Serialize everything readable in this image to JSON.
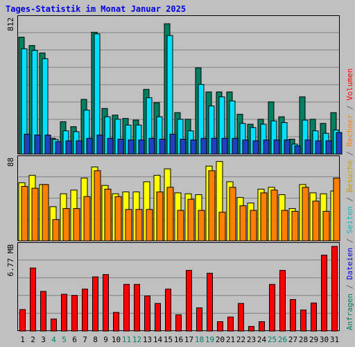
{
  "title": "Tages-Statistik im Monat Januar 2025",
  "chart_data": [
    {
      "type": "bar",
      "name": "requests",
      "ymax_label": "812",
      "ylim": [
        0,
        812
      ],
      "categories": [
        "1",
        "2",
        "3",
        "4",
        "5",
        "6",
        "7",
        "8",
        "9",
        "10",
        "11",
        "12",
        "13",
        "14",
        "15",
        "16",
        "17",
        "18",
        "19",
        "20",
        "21",
        "22",
        "23",
        "24",
        "25",
        "26",
        "27",
        "28",
        "29",
        "30",
        "31"
      ],
      "series": [
        {
          "name": "Anfragen",
          "color": "#008060",
          "values": [
            705,
            655,
            610,
            95,
            195,
            165,
            330,
            735,
            275,
            235,
            215,
            205,
            390,
            310,
            786,
            250,
            210,
            520,
            375,
            375,
            375,
            240,
            180,
            210,
            315,
            225,
            90,
            345,
            210,
            185,
            250
          ]
        },
        {
          "name": "Dateien",
          "color": "#00e0ff",
          "values": [
            635,
            625,
            575,
            88,
            140,
            135,
            265,
            725,
            225,
            210,
            175,
            175,
            340,
            225,
            715,
            210,
            140,
            420,
            290,
            345,
            320,
            185,
            160,
            180,
            200,
            190,
            60,
            205,
            140,
            125,
            145
          ]
        },
        {
          "name": "Seiten",
          "color": "#2040c0",
          "values": [
            120,
            115,
            115,
            75,
            80,
            80,
            95,
            115,
            95,
            90,
            85,
            85,
            95,
            90,
            120,
            90,
            85,
            95,
            95,
            95,
            95,
            85,
            80,
            85,
            85,
            85,
            50,
            85,
            80,
            80,
            130
          ]
        }
      ],
      "legend_labels": [
        "Anfragen",
        "/",
        "Dateien",
        "/",
        "Seiten",
        "/",
        "Besuche",
        "/",
        "Rechner",
        "/",
        "Volumen"
      ]
    },
    {
      "type": "bar",
      "name": "visits",
      "ymax_label": "88",
      "ylim": [
        0,
        88
      ],
      "categories": [
        "1",
        "2",
        "3",
        "4",
        "5",
        "6",
        "7",
        "8",
        "9",
        "10",
        "11",
        "12",
        "13",
        "14",
        "15",
        "16",
        "17",
        "18",
        "19",
        "20",
        "21",
        "22",
        "23",
        "24",
        "25",
        "26",
        "27",
        "28",
        "29",
        "30",
        "31"
      ],
      "series": [
        {
          "name": "Besuche",
          "color": "#ffff00",
          "values": [
            63,
            71,
            61,
            37,
            51,
            55,
            68,
            80,
            60,
            51,
            53,
            53,
            64,
            71,
            78,
            52,
            51,
            50,
            81,
            86,
            64,
            47,
            41,
            56,
            58,
            50,
            35,
            61,
            52,
            51,
            54
          ]
        },
        {
          "name": "Rechner",
          "color": "#ff8000",
          "values": [
            59,
            57,
            61,
            23,
            35,
            35,
            48,
            76,
            56,
            48,
            34,
            34,
            34,
            53,
            58,
            33,
            45,
            33,
            76,
            31,
            58,
            38,
            33,
            52,
            55,
            33,
            32,
            58,
            43,
            32,
            68
          ]
        }
      ]
    },
    {
      "type": "bar",
      "name": "volume",
      "ymax_label": "6.77 MB",
      "ylim": [
        0,
        6.77
      ],
      "categories": [
        "1",
        "2",
        "3",
        "4",
        "5",
        "6",
        "7",
        "8",
        "9",
        "10",
        "11",
        "12",
        "13",
        "14",
        "15",
        "16",
        "17",
        "18",
        "19",
        "20",
        "21",
        "22",
        "23",
        "24",
        "25",
        "26",
        "27",
        "28",
        "29",
        "30",
        "31"
      ],
      "series": [
        {
          "name": "Volumen",
          "color": "#ff0000",
          "values": [
            1.72,
            5.04,
            3.17,
            0.96,
            2.94,
            2.85,
            3.36,
            4.33,
            4.52,
            1.49,
            3.73,
            3.73,
            2.8,
            2.21,
            3.36,
            1.3,
            4.85,
            1.86,
            4.62,
            0.75,
            1.12,
            2.21,
            0.37,
            0.75,
            3.73,
            4.85,
            2.52,
            1.68,
            2.24,
            6.07,
            6.77
          ]
        }
      ]
    }
  ],
  "x_labels": [
    "1",
    "2",
    "3",
    "4",
    "5",
    "6",
    "7",
    "8",
    "9",
    "10",
    "11",
    "12",
    "13",
    "14",
    "15",
    "16",
    "17",
    "18",
    "19",
    "20",
    "21",
    "22",
    "23",
    "24",
    "25",
    "26",
    "27",
    "28",
    "29",
    "30",
    "31"
  ],
  "weekend_days": [
    "4",
    "5",
    "11",
    "12",
    "18",
    "19",
    "25",
    "26"
  ],
  "colors": {
    "background": "#c0c0c0",
    "plot_bg": "#c0c0c0",
    "grid": "#808080",
    "title": "#0000e0",
    "weekday_label": "#000000",
    "weekend_label": "#00806a",
    "label_anfragen": "#008060",
    "label_dateien": "#0000e0",
    "label_seiten": "#00c0c0",
    "label_besuche": "#c8a000",
    "label_rechner": "#ff8000",
    "label_volumen": "#ff0000",
    "separator": "#606060"
  }
}
